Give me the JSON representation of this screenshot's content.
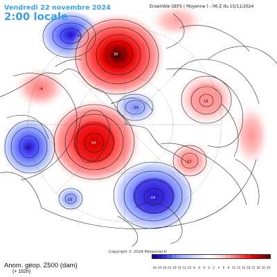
{
  "header": {
    "date_line": "Vendredi 22 novembre 2024",
    "time_line": "2:00 locale",
    "run_info": "Ensemble GEFS  ( Moyenne )  - 06 Z du 15/11/2024"
  },
  "footer": {
    "field_label": "Anom. géop. Z500 (dam)",
    "lead_time": "(+ 162h)",
    "copyright": "Copyright © 2024 Meteociel.fr"
  },
  "colorbar": {
    "labels": [
      "-34",
      "-30",
      "-26",
      "-22",
      "-18",
      "-14",
      "-12",
      "-10",
      "-8",
      "-6",
      "-4",
      "-2",
      "2",
      "4",
      "6",
      "8",
      "10",
      "12",
      "14",
      "18",
      "22",
      "26",
      "30",
      "34"
    ],
    "colors": [
      "#1a0096",
      "#2a10c8",
      "#3b2ef0",
      "#4d55ff",
      "#6f7dff",
      "#8fa0ff",
      "#a7b6ff",
      "#bcc8ff",
      "#cfd8ff",
      "#dfe5ff",
      "#ecf0ff",
      "#ffffff",
      "#fff0f0",
      "#ffdede",
      "#ffc4c4",
      "#ffa6a6",
      "#ff8585",
      "#ff6262",
      "#ff3d3d",
      "#ff1a1a",
      "#e60000",
      "#c00000",
      "#960000",
      "#6b0000"
    ]
  },
  "anomalies": [
    {
      "name": "pacific-ne-low",
      "sign": "negative",
      "label": "-10"
    },
    {
      "name": "arctic-siberia-high",
      "sign": "positive",
      "label": "36"
    },
    {
      "name": "west-canada-weak-low",
      "sign": "negative",
      "label": "-4"
    },
    {
      "name": "central-arctic-low",
      "sign": "negative",
      "label": "-16"
    },
    {
      "name": "greenland-high",
      "sign": "positive",
      "label": "24"
    },
    {
      "name": "east-pacific-low",
      "sign": "negative",
      "label": "-16"
    },
    {
      "name": "east-siberia-high",
      "sign": "positive",
      "label": "18"
    },
    {
      "name": "central-asia-high",
      "sign": "positive",
      "label": "12"
    },
    {
      "name": "europe-trough",
      "sign": "negative",
      "label": "-24"
    },
    {
      "name": "atlantic-small-low",
      "sign": "negative",
      "label": "-10"
    }
  ],
  "colors": {
    "title_blue": "#3aa0e8",
    "coast": "#222222",
    "contour": "#111111"
  }
}
